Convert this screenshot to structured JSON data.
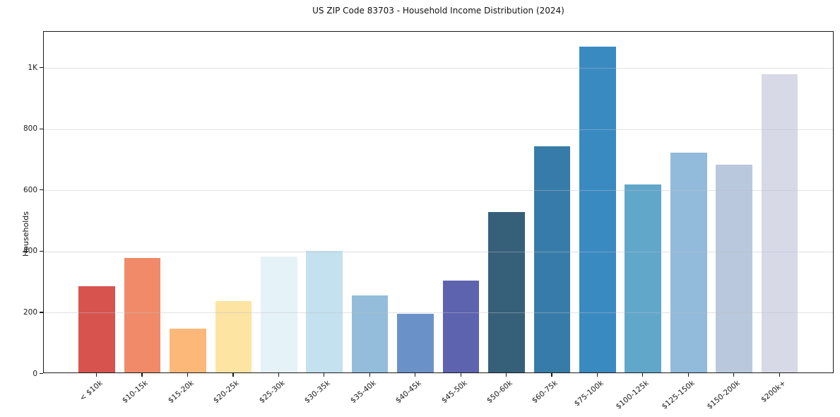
{
  "chart_data": {
    "type": "bar",
    "title": "US ZIP Code 83703 - Household Income Distribution (2024)",
    "xlabel": "",
    "ylabel": "Households",
    "categories": [
      "< $10k",
      "$10-15k",
      "$15-20k",
      "$20-25k",
      "$25-30k",
      "$30-35k",
      "$35-40k",
      "$40-45k",
      "$45-50k",
      "$50-60k",
      "$60-75k",
      "$75-100k",
      "$100-125k",
      "$125-150k",
      "$150-200k",
      "$200k+"
    ],
    "values": [
      282,
      375,
      143,
      233,
      379,
      398,
      251,
      191,
      300,
      524,
      740,
      1064,
      615,
      719,
      680,
      975
    ],
    "bar_colors": [
      "#d6534e",
      "#f18a68",
      "#fbb878",
      "#fde4a2",
      "#e5f2f7",
      "#c3e1ee",
      "#93bddb",
      "#6b92c8",
      "#5d63ae",
      "#36607a",
      "#377ca8",
      "#3a8ac2",
      "#61a7ca",
      "#92badb",
      "#b9c8dc",
      "#d7d9e6"
    ],
    "ylim": [
      0,
      1118
    ],
    "yticks": {
      "values": [
        0,
        200,
        400,
        600,
        800,
        1000
      ],
      "labels": [
        "0",
        "200",
        "400",
        "600",
        "800",
        "1K"
      ]
    },
    "grid": "horizontal",
    "legend": "none",
    "axis_color": "#1a1a1a",
    "background_color": "#ffffff"
  }
}
